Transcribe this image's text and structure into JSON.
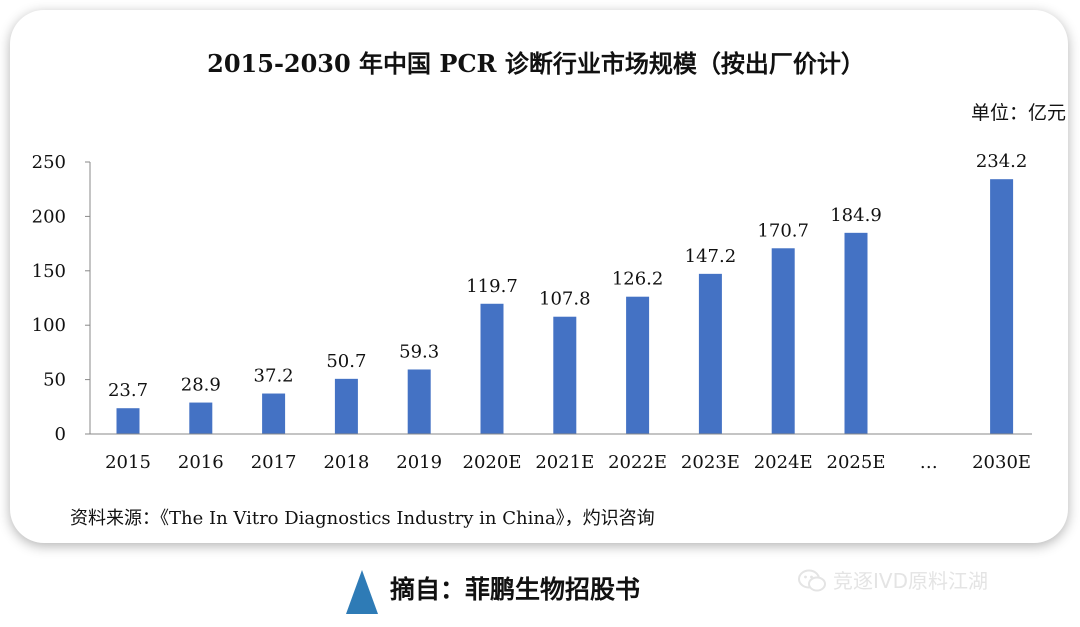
{
  "chart_data": {
    "type": "bar",
    "title": "2015-2030 年中国 PCR 诊断行业市场规模（按出厂价计）",
    "unit_label": "单位：亿元",
    "categories": [
      "2015",
      "2016",
      "2017",
      "2018",
      "2019",
      "2020E",
      "2021E",
      "2022E",
      "2023E",
      "2024E",
      "2025E",
      "…",
      "2030E"
    ],
    "values": [
      23.7,
      28.9,
      37.2,
      50.7,
      59.3,
      119.7,
      107.8,
      126.2,
      147.2,
      170.7,
      184.9,
      null,
      234.2
    ],
    "data_labels": [
      "23.7",
      "28.9",
      "37.2",
      "50.7",
      "59.3",
      "119.7",
      "107.8",
      "126.2",
      "147.2",
      "170.7",
      "184.9",
      "",
      "234.2"
    ],
    "yticks": [
      "0",
      "50",
      "100",
      "150",
      "200",
      "250"
    ],
    "ylim": [
      0,
      250
    ],
    "bar_color": "#4472C4",
    "grid": false,
    "source": "资料来源：《The In Vitro Diagnostics Industry in China》，灼识咨询"
  },
  "footer": {
    "title": "摘自：菲鹏生物招股书",
    "marker_color": "#2E7BB6"
  },
  "watermark": {
    "text": "竞逐IVD原料江湖",
    "icon": "wechat-icon"
  }
}
